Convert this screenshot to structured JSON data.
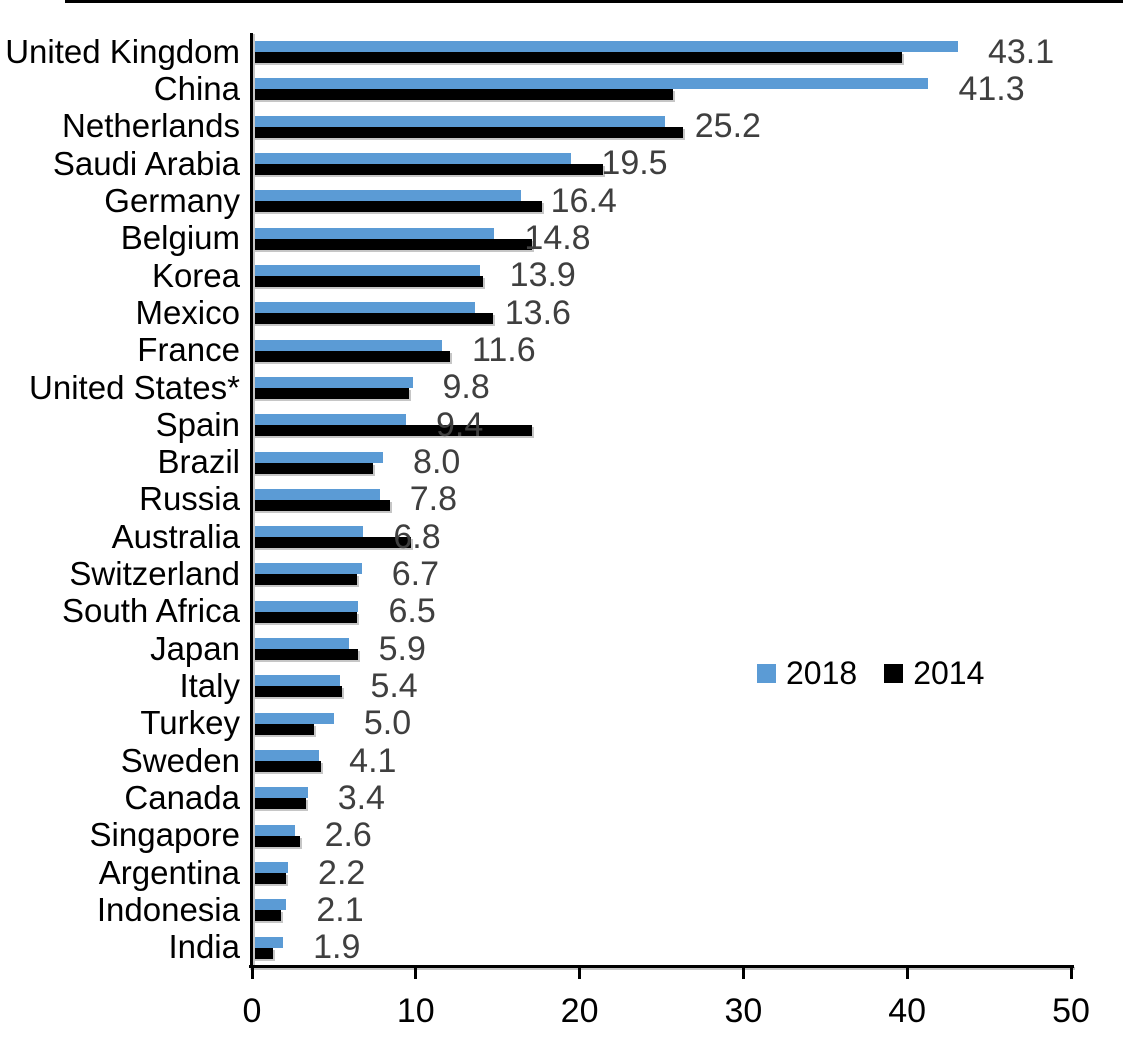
{
  "chart_data": {
    "type": "bar",
    "orientation": "horizontal",
    "title": "",
    "categories": [
      "United Kingdom",
      "China",
      "Netherlands",
      "Saudi Arabia",
      "Germany",
      "Belgium",
      "Korea",
      "Mexico",
      "France",
      "United States*",
      "Spain",
      "Brazil",
      "Russia",
      "Australia",
      "Switzerland",
      "South Africa",
      "Japan",
      "Italy",
      "Turkey",
      "Sweden",
      "Canada",
      "Singapore",
      "Argentina",
      "Indonesia",
      "India"
    ],
    "series": [
      {
        "name": "2018",
        "color": "#5B9BD5",
        "values": [
          43.1,
          41.3,
          25.2,
          19.5,
          16.4,
          14.8,
          13.9,
          13.6,
          11.6,
          9.8,
          9.4,
          8.0,
          7.8,
          6.8,
          6.7,
          6.5,
          5.9,
          5.4,
          5.0,
          4.1,
          3.4,
          2.6,
          2.2,
          2.1,
          1.9
        ]
      },
      {
        "name": "2014",
        "color": "#000000",
        "values": [
          39.7,
          25.7,
          26.3,
          21.4,
          17.7,
          17.1,
          14.1,
          14.7,
          12.1,
          9.6,
          17.1,
          7.4,
          8.4,
          9.7,
          6.4,
          6.4,
          6.5,
          5.5,
          3.8,
          4.2,
          3.3,
          2.9,
          2.1,
          1.8,
          1.3
        ]
      }
    ],
    "value_labels": [
      "43.1",
      "41.3",
      "25.2",
      "19.5",
      "16.4",
      "14.8",
      "13.9",
      "13.6",
      "11.6",
      "9.8",
      "9.4",
      "8.0",
      "7.8",
      "6.8",
      "6.7",
      "6.5",
      "5.9",
      "5.4",
      "5.0",
      "4.1",
      "3.4",
      "2.6",
      "2.2",
      "2.1",
      "1.9"
    ],
    "value_label_series": "2018",
    "value_label_color": "#3F3F3F",
    "x_axis": {
      "min": 0,
      "max": 50,
      "tick_labels": [
        "0",
        "10",
        "20",
        "30",
        "40",
        "50"
      ]
    },
    "legend": {
      "position": "middle-right",
      "entries": [
        {
          "label": "2018",
          "color": "#5B9BD5"
        },
        {
          "label": "2014",
          "color": "#000000"
        }
      ]
    },
    "grid": "off",
    "axis_color": "#000000",
    "background": "#FFFFFF"
  }
}
